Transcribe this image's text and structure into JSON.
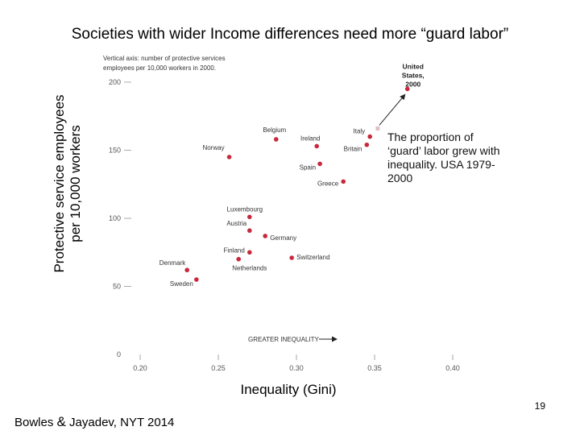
{
  "slide": {
    "title": "Societies with wider Income differences need more “guard labor”",
    "y_label_line1": "Protective service employees",
    "y_label_line2": "per 10,000 workers",
    "x_label": "Inequality (Gini)",
    "annotation": "The proportion of ‘guard’ labor grew with inequality. USA 1979-2000",
    "credit_name": "Bowles",
    "credit_amp": "&",
    "credit_rest": "Jayadev, NYT 2014",
    "page_number": "19"
  },
  "chart_data": {
    "type": "scatter",
    "vertical_note_line1": "Vertical axis: number of protective services",
    "vertical_note_line2": "employees per 10,000 workers in 2000.",
    "arrow_label": "GREATER INEQUALITY",
    "xlim": [
      0.2,
      0.4
    ],
    "ylim": [
      0,
      200
    ],
    "x_ticks": [
      {
        "value": 0.2,
        "label": "0.20"
      },
      {
        "value": 0.25,
        "label": "0.25"
      },
      {
        "value": 0.3,
        "label": "0.30"
      },
      {
        "value": 0.35,
        "label": "0.35"
      },
      {
        "value": 0.4,
        "label": "0.40"
      }
    ],
    "y_ticks": [
      {
        "value": 0,
        "label": "0"
      },
      {
        "value": 50,
        "label": "50"
      },
      {
        "value": 100,
        "label": "100"
      },
      {
        "value": 150,
        "label": "150"
      },
      {
        "value": 200,
        "label": "200"
      }
    ],
    "point_color": "#c8283c",
    "grid": false,
    "points": [
      {
        "label": "United States, 2000",
        "label_lines": [
          "United",
          "States,",
          "2000"
        ],
        "x": 0.371,
        "y": 195,
        "highlight": true
      },
      {
        "label": "Italy",
        "x": 0.347,
        "y": 160
      },
      {
        "label": "Britain",
        "x": 0.345,
        "y": 154
      },
      {
        "label": "Belgium",
        "x": 0.287,
        "y": 158
      },
      {
        "label": "Ireland",
        "x": 0.313,
        "y": 153
      },
      {
        "label": "Norway",
        "x": 0.257,
        "y": 145
      },
      {
        "label": "Spain",
        "x": 0.315,
        "y": 140
      },
      {
        "label": "Greece",
        "x": 0.33,
        "y": 127
      },
      {
        "label": "Luxembourg",
        "x": 0.27,
        "y": 101
      },
      {
        "label": "Austria",
        "x": 0.27,
        "y": 91
      },
      {
        "label": "Germany",
        "x": 0.28,
        "y": 87
      },
      {
        "label": "Finland",
        "x": 0.27,
        "y": 75
      },
      {
        "label": "Switzerland",
        "x": 0.297,
        "y": 71
      },
      {
        "label": "Netherlands",
        "x": 0.263,
        "y": 70
      },
      {
        "label": "Denmark",
        "x": 0.23,
        "y": 62
      },
      {
        "label": "Sweden",
        "x": 0.236,
        "y": 55
      }
    ],
    "usa_1979": {
      "x": 0.352,
      "y": 166,
      "color": "#e0c0c0"
    }
  }
}
